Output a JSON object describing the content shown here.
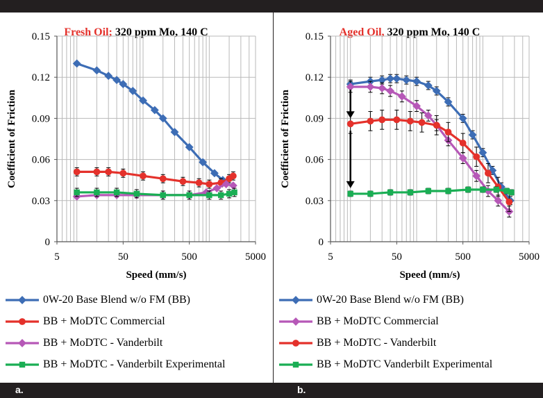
{
  "panel_labels": [
    "a.",
    "b."
  ],
  "chart_data": [
    {
      "type": "line",
      "title_highlight": "Fresh Oil;",
      "title_rest": " 320 ppm Mo, 140 C",
      "xlabel": "Speed (mm/s)",
      "ylabel": "Coefficient of Friction",
      "x_scale": "log",
      "xlim": [
        5,
        5000
      ],
      "ylim": [
        0,
        0.15
      ],
      "x_ticks": [
        "5",
        "50",
        "500",
        "5000"
      ],
      "y_ticks": [
        "0",
        "0.03",
        "0.06",
        "0.09",
        "0.12",
        "0.15"
      ],
      "grid": true,
      "legend_position": "bottom",
      "series": [
        {
          "name": "0W-20 Base Blend w/o FM (BB)",
          "color": "#3d6db5",
          "marker": "diamond",
          "points": [
            [
              10,
              0.13
            ],
            [
              20,
              0.125
            ],
            [
              30,
              0.121
            ],
            [
              40,
              0.118
            ],
            [
              50,
              0.115
            ],
            [
              70,
              0.11
            ],
            [
              100,
              0.103
            ],
            [
              150,
              0.096
            ],
            [
              200,
              0.09
            ],
            [
              300,
              0.08
            ],
            [
              500,
              0.069
            ],
            [
              800,
              0.058
            ],
            [
              1200,
              0.05
            ],
            [
              1600,
              0.045
            ]
          ]
        },
        {
          "name": "BB + MoDTC Commercial",
          "color": "#e4312b",
          "marker": "circle",
          "points": [
            [
              10,
              0.051
            ],
            [
              20,
              0.051
            ],
            [
              30,
              0.051
            ],
            [
              50,
              0.05
            ],
            [
              100,
              0.048
            ],
            [
              200,
              0.046
            ],
            [
              400,
              0.044
            ],
            [
              700,
              0.043
            ],
            [
              1000,
              0.042
            ],
            [
              1500,
              0.043
            ],
            [
              2000,
              0.046
            ],
            [
              2300,
              0.048
            ]
          ],
          "error": 0.003
        },
        {
          "name": "BB + MoDTC - Vanderbilt",
          "color": "#b658b7",
          "marker": "diamond",
          "points": [
            [
              10,
              0.033
            ],
            [
              20,
              0.034
            ],
            [
              40,
              0.034
            ],
            [
              80,
              0.034
            ],
            [
              200,
              0.034
            ],
            [
              500,
              0.034
            ],
            [
              900,
              0.036
            ],
            [
              1300,
              0.039
            ],
            [
              1800,
              0.042
            ],
            [
              2300,
              0.041
            ]
          ]
        },
        {
          "name": "BB + MoDTC - Vanderbilt Experimental",
          "color": "#1aae54",
          "marker": "square",
          "points": [
            [
              10,
              0.036
            ],
            [
              20,
              0.036
            ],
            [
              40,
              0.036
            ],
            [
              80,
              0.035
            ],
            [
              200,
              0.034
            ],
            [
              500,
              0.034
            ],
            [
              1000,
              0.034
            ],
            [
              1500,
              0.034
            ],
            [
              2000,
              0.035
            ],
            [
              2400,
              0.036
            ]
          ],
          "error": 0.003
        }
      ]
    },
    {
      "type": "line",
      "title_highlight": "Aged Oil,",
      "title_rest": " 320 ppm Mo, 140 C",
      "xlabel": "Speed (mm/s)",
      "ylabel": "Coefficient of Friction",
      "x_scale": "log",
      "xlim": [
        5,
        5000
      ],
      "ylim": [
        0,
        0.15
      ],
      "x_ticks": [
        "5",
        "50",
        "500",
        "5000"
      ],
      "y_ticks": [
        "0",
        "0.03",
        "0.06",
        "0.09",
        "0.12",
        "0.15"
      ],
      "grid": true,
      "legend_position": "bottom",
      "annotation": "arrows from fresh to aged friction values at lowest speed",
      "series": [
        {
          "name": "0W-20 Base Blend w/o FM (BB)",
          "color": "#3d6db5",
          "marker": "diamond",
          "points": [
            [
              10,
              0.115
            ],
            [
              20,
              0.117
            ],
            [
              30,
              0.118
            ],
            [
              40,
              0.119
            ],
            [
              50,
              0.119
            ],
            [
              70,
              0.118
            ],
            [
              100,
              0.117
            ],
            [
              150,
              0.114
            ],
            [
              200,
              0.11
            ],
            [
              300,
              0.102
            ],
            [
              500,
              0.09
            ],
            [
              700,
              0.078
            ],
            [
              1000,
              0.065
            ],
            [
              1400,
              0.052
            ],
            [
              1900,
              0.04
            ],
            [
              2600,
              0.03
            ]
          ],
          "error": 0.003
        },
        {
          "name": "BB + MoDTC Commercial",
          "color": "#b658b7",
          "marker": "diamond",
          "points": [
            [
              10,
              0.113
            ],
            [
              20,
              0.113
            ],
            [
              30,
              0.112
            ],
            [
              40,
              0.11
            ],
            [
              60,
              0.106
            ],
            [
              100,
              0.099
            ],
            [
              150,
              0.092
            ],
            [
              200,
              0.085
            ],
            [
              300,
              0.074
            ],
            [
              500,
              0.061
            ],
            [
              800,
              0.048
            ],
            [
              1200,
              0.037
            ],
            [
              1700,
              0.03
            ],
            [
              2500,
              0.022
            ]
          ],
          "error": 0.004
        },
        {
          "name": "BB + MoDTC - Vanderbilt",
          "color": "#e4312b",
          "marker": "circle",
          "points": [
            [
              10,
              0.086
            ],
            [
              20,
              0.088
            ],
            [
              30,
              0.089
            ],
            [
              50,
              0.089
            ],
            [
              80,
              0.088
            ],
            [
              120,
              0.087
            ],
            [
              200,
              0.085
            ],
            [
              300,
              0.08
            ],
            [
              500,
              0.072
            ],
            [
              800,
              0.062
            ],
            [
              1200,
              0.05
            ],
            [
              1700,
              0.04
            ],
            [
              2500,
              0.029
            ]
          ],
          "error": 0.007
        },
        {
          "name": "BB + MoDTC Vanderbilt Experimental",
          "color": "#1aae54",
          "marker": "square",
          "points": [
            [
              10,
              0.035
            ],
            [
              20,
              0.035
            ],
            [
              40,
              0.036
            ],
            [
              80,
              0.036
            ],
            [
              150,
              0.037
            ],
            [
              300,
              0.037
            ],
            [
              600,
              0.038
            ],
            [
              1000,
              0.038
            ],
            [
              1600,
              0.038
            ],
            [
              2300,
              0.037
            ],
            [
              2700,
              0.036
            ]
          ],
          "error": 0.002
        }
      ]
    }
  ]
}
